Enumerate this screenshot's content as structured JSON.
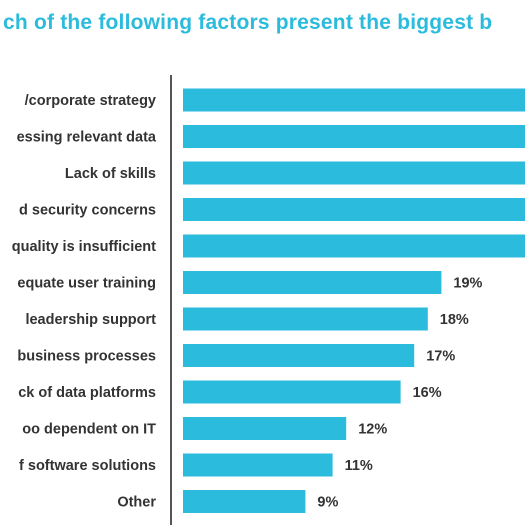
{
  "chart_data": {
    "type": "bar",
    "orientation": "horizontal",
    "title": "ch of the following factors present the biggest b",
    "categories": [
      "/corporate strategy",
      "essing relevant data",
      "Lack of skills",
      "d security concerns",
      "quality is insufficient",
      "equate user training",
      "leadership support",
      "business processes",
      "ck of data platforms",
      "oo dependent on IT",
      "f software solutions",
      "Other"
    ],
    "values": [
      null,
      null,
      null,
      null,
      null,
      19,
      18,
      17,
      16,
      12,
      11,
      9
    ],
    "value_labels": [
      "",
      "",
      "",
      "",
      "",
      "19%",
      "18%",
      "17%",
      "16%",
      "12%",
      "11%",
      "9%"
    ],
    "unit": "%",
    "xlim": [
      0,
      25
    ],
    "grid": false,
    "legend": "none",
    "colors": {
      "bar": "#2bbbdc",
      "title": "#2bbbdc",
      "text": "#333333",
      "axis": "#555555"
    }
  }
}
